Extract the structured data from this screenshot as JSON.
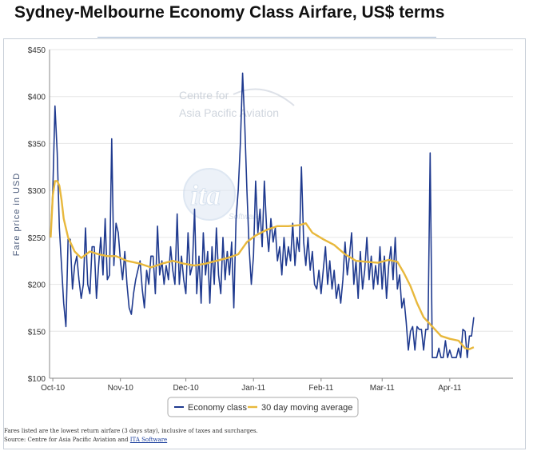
{
  "title": "Sydney-Melbourne Economy Class Airfare, US$ terms",
  "watermark": {
    "line1": "Centre for",
    "line2": "Asia Pacific Aviation",
    "logo_text": "ita",
    "logo_sub": "Software"
  },
  "footnote": {
    "line1": "Fares listed are the lowest return airfare (3 days stay), inclusive of taxes and surcharges.",
    "source_prefix": "Source: Centre for Asia Pacific Aviation and ",
    "source_link": "ITA Software"
  },
  "colors": {
    "economy": "#1f3a8f",
    "moving_average": "#e8b83c",
    "grid": "#e6e6e6",
    "axis": "#888888"
  },
  "chart_data": {
    "type": "line",
    "title": "Sydney-Melbourne Economy Class Airfare, US$ terms",
    "xlabel": "",
    "ylabel": "Fare price in USD",
    "ylim": [
      100,
      450
    ],
    "yticks": [
      100,
      150,
      200,
      250,
      300,
      350,
      400,
      450
    ],
    "ytick_labels": [
      "$100",
      "$150",
      "$200",
      "$250",
      "$300",
      "$350",
      "$400",
      "$450"
    ],
    "xlim": [
      "2010-10-01",
      "2011-04-30"
    ],
    "xticks": [
      {
        "date": "2010-10-01",
        "label": "Oct-10"
      },
      {
        "date": "2010-11-01",
        "label": "Nov-10"
      },
      {
        "date": "2010-12-01",
        "label": "Dec-10"
      },
      {
        "date": "2011-01-01",
        "label": "Jan-11"
      },
      {
        "date": "2011-02-01",
        "label": "Feb-11"
      },
      {
        "date": "2011-03-01",
        "label": "Mar-11"
      },
      {
        "date": "2011-04-01",
        "label": "Apr-11"
      }
    ],
    "grid": true,
    "legend_position": "bottom-center",
    "series": [
      {
        "name": "Economy class",
        "color": "#1f3a8f",
        "points": [
          [
            "2010-09-30",
            250
          ],
          [
            "2010-10-01",
            300
          ],
          [
            "2010-10-02",
            390
          ],
          [
            "2010-10-03",
            340
          ],
          [
            "2010-10-04",
            260
          ],
          [
            "2010-10-05",
            220
          ],
          [
            "2010-10-06",
            180
          ],
          [
            "2010-10-07",
            155
          ],
          [
            "2010-10-08",
            248
          ],
          [
            "2010-10-09",
            248
          ],
          [
            "2010-10-10",
            195
          ],
          [
            "2010-10-11",
            220
          ],
          [
            "2010-10-12",
            230
          ],
          [
            "2010-10-13",
            205
          ],
          [
            "2010-10-14",
            185
          ],
          [
            "2010-10-15",
            200
          ],
          [
            "2010-10-16",
            260
          ],
          [
            "2010-10-17",
            200
          ],
          [
            "2010-10-18",
            190
          ],
          [
            "2010-10-19",
            240
          ],
          [
            "2010-10-20",
            240
          ],
          [
            "2010-10-21",
            185
          ],
          [
            "2010-10-22",
            220
          ],
          [
            "2010-10-23",
            250
          ],
          [
            "2010-10-24",
            210
          ],
          [
            "2010-10-25",
            270
          ],
          [
            "2010-10-26",
            205
          ],
          [
            "2010-10-27",
            210
          ],
          [
            "2010-10-28",
            355
          ],
          [
            "2010-10-29",
            220
          ],
          [
            "2010-10-30",
            265
          ],
          [
            "2010-10-31",
            255
          ],
          [
            "2010-11-01",
            225
          ],
          [
            "2010-11-02",
            205
          ],
          [
            "2010-11-03",
            235
          ],
          [
            "2010-11-04",
            200
          ],
          [
            "2010-11-05",
            175
          ],
          [
            "2010-11-06",
            168
          ],
          [
            "2010-11-07",
            190
          ],
          [
            "2010-11-08",
            205
          ],
          [
            "2010-11-09",
            215
          ],
          [
            "2010-11-10",
            225
          ],
          [
            "2010-11-11",
            195
          ],
          [
            "2010-11-12",
            175
          ],
          [
            "2010-11-13",
            215
          ],
          [
            "2010-11-14",
            200
          ],
          [
            "2010-11-15",
            230
          ],
          [
            "2010-11-16",
            230
          ],
          [
            "2010-11-17",
            190
          ],
          [
            "2010-11-18",
            262
          ],
          [
            "2010-11-19",
            210
          ],
          [
            "2010-11-20",
            225
          ],
          [
            "2010-11-21",
            200
          ],
          [
            "2010-11-22",
            220
          ],
          [
            "2010-11-23",
            205
          ],
          [
            "2010-11-24",
            240
          ],
          [
            "2010-11-25",
            215
          ],
          [
            "2010-11-26",
            200
          ],
          [
            "2010-11-27",
            275
          ],
          [
            "2010-11-28",
            200
          ],
          [
            "2010-11-29",
            230
          ],
          [
            "2010-11-30",
            205
          ],
          [
            "2010-12-01",
            190
          ],
          [
            "2010-12-02",
            255
          ],
          [
            "2010-12-03",
            210
          ],
          [
            "2010-12-04",
            220
          ],
          [
            "2010-12-05",
            280
          ],
          [
            "2010-12-06",
            190
          ],
          [
            "2010-12-07",
            230
          ],
          [
            "2010-12-08",
            180
          ],
          [
            "2010-12-09",
            255
          ],
          [
            "2010-12-10",
            210
          ],
          [
            "2010-12-11",
            235
          ],
          [
            "2010-12-12",
            180
          ],
          [
            "2010-12-13",
            240
          ],
          [
            "2010-12-14",
            200
          ],
          [
            "2010-12-15",
            260
          ],
          [
            "2010-12-16",
            210
          ],
          [
            "2010-12-17",
            190
          ],
          [
            "2010-12-18",
            250
          ],
          [
            "2010-12-19",
            205
          ],
          [
            "2010-12-20",
            235
          ],
          [
            "2010-12-21",
            210
          ],
          [
            "2010-12-22",
            245
          ],
          [
            "2010-12-23",
            175
          ],
          [
            "2010-12-24",
            270
          ],
          [
            "2010-12-25",
            300
          ],
          [
            "2010-12-26",
            350
          ],
          [
            "2010-12-27",
            425
          ],
          [
            "2010-12-28",
            370
          ],
          [
            "2010-12-29",
            300
          ],
          [
            "2010-12-30",
            240
          ],
          [
            "2010-12-31",
            200
          ],
          [
            "2011-01-01",
            230
          ],
          [
            "2011-01-02",
            310
          ],
          [
            "2011-01-03",
            255
          ],
          [
            "2011-01-04",
            280
          ],
          [
            "2011-01-05",
            240
          ],
          [
            "2011-01-06",
            310
          ],
          [
            "2011-01-07",
            260
          ],
          [
            "2011-01-08",
            235
          ],
          [
            "2011-01-09",
            270
          ],
          [
            "2011-01-10",
            245
          ],
          [
            "2011-01-11",
            260
          ],
          [
            "2011-01-12",
            225
          ],
          [
            "2011-01-13",
            240
          ],
          [
            "2011-01-14",
            210
          ],
          [
            "2011-01-15",
            250
          ],
          [
            "2011-01-16",
            220
          ],
          [
            "2011-01-17",
            240
          ],
          [
            "2011-01-18",
            225
          ],
          [
            "2011-01-19",
            265
          ],
          [
            "2011-01-20",
            220
          ],
          [
            "2011-01-21",
            250
          ],
          [
            "2011-01-22",
            235
          ],
          [
            "2011-01-23",
            325
          ],
          [
            "2011-01-24",
            245
          ],
          [
            "2011-01-25",
            220
          ],
          [
            "2011-01-26",
            250
          ],
          [
            "2011-01-27",
            215
          ],
          [
            "2011-01-28",
            235
          ],
          [
            "2011-01-29",
            200
          ],
          [
            "2011-01-30",
            195
          ],
          [
            "2011-01-31",
            215
          ],
          [
            "2011-02-01",
            190
          ],
          [
            "2011-02-02",
            215
          ],
          [
            "2011-02-03",
            240
          ],
          [
            "2011-02-04",
            200
          ],
          [
            "2011-02-05",
            225
          ],
          [
            "2011-02-06",
            195
          ],
          [
            "2011-02-07",
            215
          ],
          [
            "2011-02-08",
            185
          ],
          [
            "2011-02-09",
            200
          ],
          [
            "2011-02-10",
            180
          ],
          [
            "2011-02-11",
            205
          ],
          [
            "2011-02-12",
            245
          ],
          [
            "2011-02-13",
            210
          ],
          [
            "2011-02-14",
            230
          ],
          [
            "2011-02-15",
            255
          ],
          [
            "2011-02-16",
            200
          ],
          [
            "2011-02-17",
            225
          ],
          [
            "2011-02-18",
            185
          ],
          [
            "2011-02-19",
            235
          ],
          [
            "2011-02-20",
            195
          ],
          [
            "2011-02-21",
            215
          ],
          [
            "2011-02-22",
            250
          ],
          [
            "2011-02-23",
            205
          ],
          [
            "2011-02-24",
            230
          ],
          [
            "2011-02-25",
            195
          ],
          [
            "2011-02-26",
            220
          ],
          [
            "2011-02-27",
            200
          ],
          [
            "2011-02-28",
            240
          ],
          [
            "2011-03-01",
            195
          ],
          [
            "2011-03-02",
            230
          ],
          [
            "2011-03-03",
            185
          ],
          [
            "2011-03-04",
            220
          ],
          [
            "2011-03-05",
            240
          ],
          [
            "2011-03-06",
            205
          ],
          [
            "2011-03-07",
            250
          ],
          [
            "2011-03-08",
            195
          ],
          [
            "2011-03-09",
            210
          ],
          [
            "2011-03-10",
            175
          ],
          [
            "2011-03-11",
            185
          ],
          [
            "2011-03-12",
            160
          ],
          [
            "2011-03-13",
            130
          ],
          [
            "2011-03-14",
            150
          ],
          [
            "2011-03-15",
            155
          ],
          [
            "2011-03-16",
            130
          ],
          [
            "2011-03-17",
            155
          ],
          [
            "2011-03-18",
            152
          ],
          [
            "2011-03-19",
            152
          ],
          [
            "2011-03-20",
            130
          ],
          [
            "2011-03-21",
            152
          ],
          [
            "2011-03-22",
            152
          ],
          [
            "2011-03-23",
            340
          ],
          [
            "2011-03-24",
            122
          ],
          [
            "2011-03-25",
            122
          ],
          [
            "2011-03-26",
            122
          ],
          [
            "2011-03-27",
            132
          ],
          [
            "2011-03-28",
            122
          ],
          [
            "2011-03-29",
            122
          ],
          [
            "2011-03-30",
            140
          ],
          [
            "2011-03-31",
            122
          ],
          [
            "2011-04-01",
            130
          ],
          [
            "2011-04-02",
            122
          ],
          [
            "2011-04-03",
            122
          ],
          [
            "2011-04-04",
            122
          ],
          [
            "2011-04-05",
            132
          ],
          [
            "2011-04-06",
            122
          ],
          [
            "2011-04-07",
            152
          ],
          [
            "2011-04-08",
            150
          ],
          [
            "2011-04-09",
            122
          ],
          [
            "2011-04-10",
            145
          ],
          [
            "2011-04-11",
            145
          ],
          [
            "2011-04-12",
            165
          ]
        ]
      },
      {
        "name": "30 day moving average",
        "color": "#e8b83c",
        "points": [
          [
            "2010-09-30",
            250
          ],
          [
            "2010-10-01",
            295
          ],
          [
            "2010-10-02",
            310
          ],
          [
            "2010-10-03",
            310
          ],
          [
            "2010-10-04",
            305
          ],
          [
            "2010-10-05",
            290
          ],
          [
            "2010-10-06",
            270
          ],
          [
            "2010-10-08",
            250
          ],
          [
            "2010-10-11",
            235
          ],
          [
            "2010-10-14",
            228
          ],
          [
            "2010-10-18",
            235
          ],
          [
            "2010-10-22",
            232
          ],
          [
            "2010-10-26",
            230
          ],
          [
            "2010-10-30",
            230
          ],
          [
            "2010-11-04",
            225
          ],
          [
            "2010-11-10",
            222
          ],
          [
            "2010-11-15",
            218
          ],
          [
            "2010-11-20",
            222
          ],
          [
            "2010-11-25",
            225
          ],
          [
            "2010-11-30",
            222
          ],
          [
            "2010-12-05",
            220
          ],
          [
            "2010-12-10",
            222
          ],
          [
            "2010-12-15",
            225
          ],
          [
            "2010-12-20",
            228
          ],
          [
            "2010-12-25",
            232
          ],
          [
            "2010-12-29",
            245
          ],
          [
            "2011-01-02",
            252
          ],
          [
            "2011-01-07",
            258
          ],
          [
            "2011-01-12",
            262
          ],
          [
            "2011-01-17",
            262
          ],
          [
            "2011-01-22",
            263
          ],
          [
            "2011-01-25",
            265
          ],
          [
            "2011-01-28",
            255
          ],
          [
            "2011-02-02",
            248
          ],
          [
            "2011-02-07",
            242
          ],
          [
            "2011-02-12",
            232
          ],
          [
            "2011-02-17",
            225
          ],
          [
            "2011-02-22",
            224
          ],
          [
            "2011-02-27",
            223
          ],
          [
            "2011-03-04",
            226
          ],
          [
            "2011-03-08",
            224
          ],
          [
            "2011-03-11",
            212
          ],
          [
            "2011-03-14",
            198
          ],
          [
            "2011-03-17",
            180
          ],
          [
            "2011-03-20",
            165
          ],
          [
            "2011-03-24",
            155
          ],
          [
            "2011-03-28",
            145
          ],
          [
            "2011-04-01",
            142
          ],
          [
            "2011-04-05",
            140
          ],
          [
            "2011-04-08",
            132
          ],
          [
            "2011-04-10",
            131
          ],
          [
            "2011-04-12",
            133
          ]
        ]
      }
    ]
  }
}
